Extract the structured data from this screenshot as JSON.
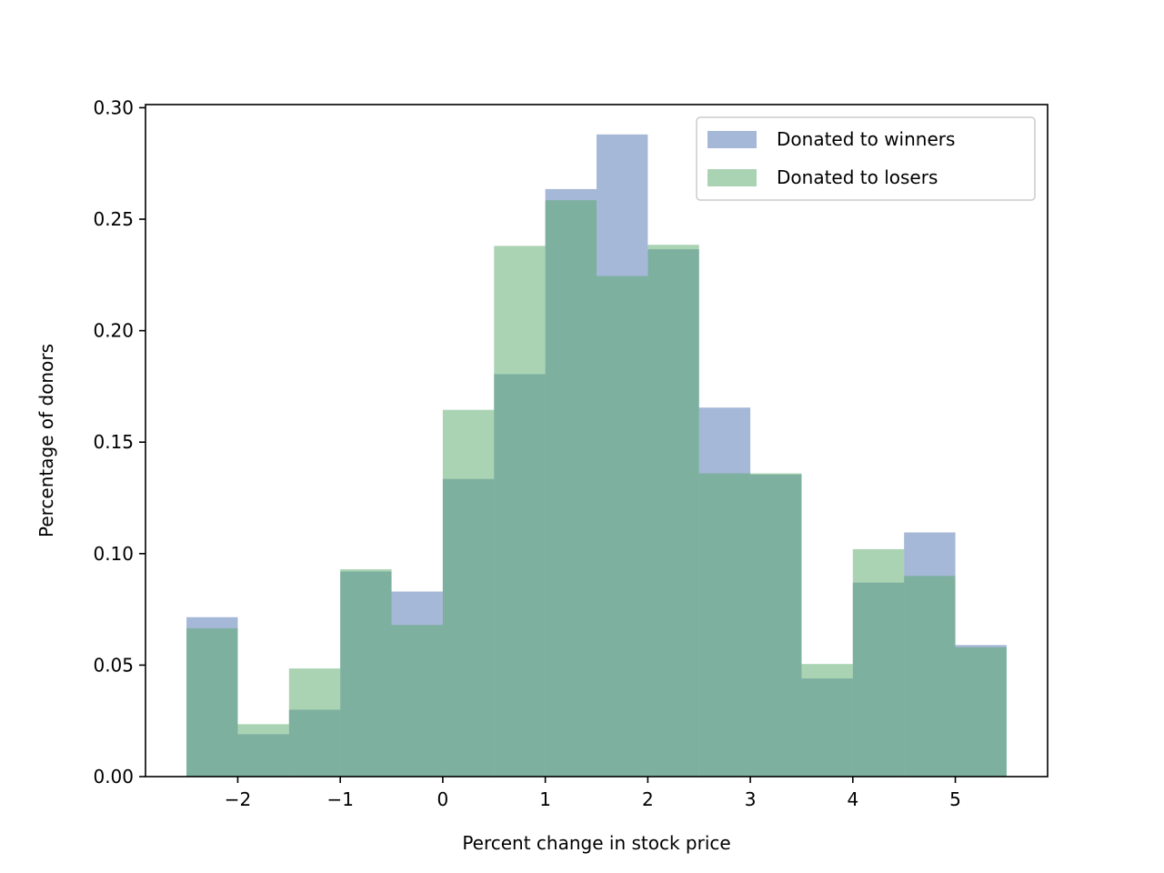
{
  "chart_data": {
    "type": "bar",
    "subtype": "overlaid-histogram",
    "title": "",
    "xlabel": "Percent change in stock price",
    "ylabel": "Percentage of donors",
    "xlim": [
      -2.9,
      5.9
    ],
    "ylim": [
      0,
      0.3014
    ],
    "xticks": [
      -2,
      -1,
      0,
      1,
      2,
      3,
      4,
      5
    ],
    "xtick_labels": [
      "−2",
      "−1",
      "0",
      "1",
      "2",
      "3",
      "4",
      "5"
    ],
    "yticks": [
      0.0,
      0.05,
      0.1,
      0.15,
      0.2,
      0.25,
      0.3
    ],
    "ytick_labels": [
      "0.00",
      "0.05",
      "0.10",
      "0.15",
      "0.20",
      "0.25",
      "0.30"
    ],
    "bin_edges": [
      -2.5,
      -2.0,
      -1.5,
      -1.0,
      -0.5,
      0.0,
      0.5,
      1.0,
      1.5,
      2.0,
      2.5,
      3.0,
      3.5,
      4.0,
      4.5,
      5.0,
      5.5
    ],
    "series": [
      {
        "name": "Donated to winners",
        "color": "#4c72b0",
        "alpha": 0.5,
        "values": [
          0.0715,
          0.019,
          0.03,
          0.092,
          0.083,
          0.1335,
          0.1805,
          0.2635,
          0.288,
          0.2365,
          0.1655,
          0.1355,
          0.044,
          0.087,
          0.1095,
          0.059
        ]
      },
      {
        "name": "Donated to losers",
        "color": "#55a868",
        "alpha": 0.5,
        "values": [
          0.0665,
          0.0235,
          0.0485,
          0.093,
          0.068,
          0.1645,
          0.238,
          0.2585,
          0.2245,
          0.2385,
          0.136,
          0.136,
          0.0505,
          0.102,
          0.09,
          0.058
        ]
      }
    ],
    "legend": {
      "position": "top-right"
    },
    "grid": false
  }
}
